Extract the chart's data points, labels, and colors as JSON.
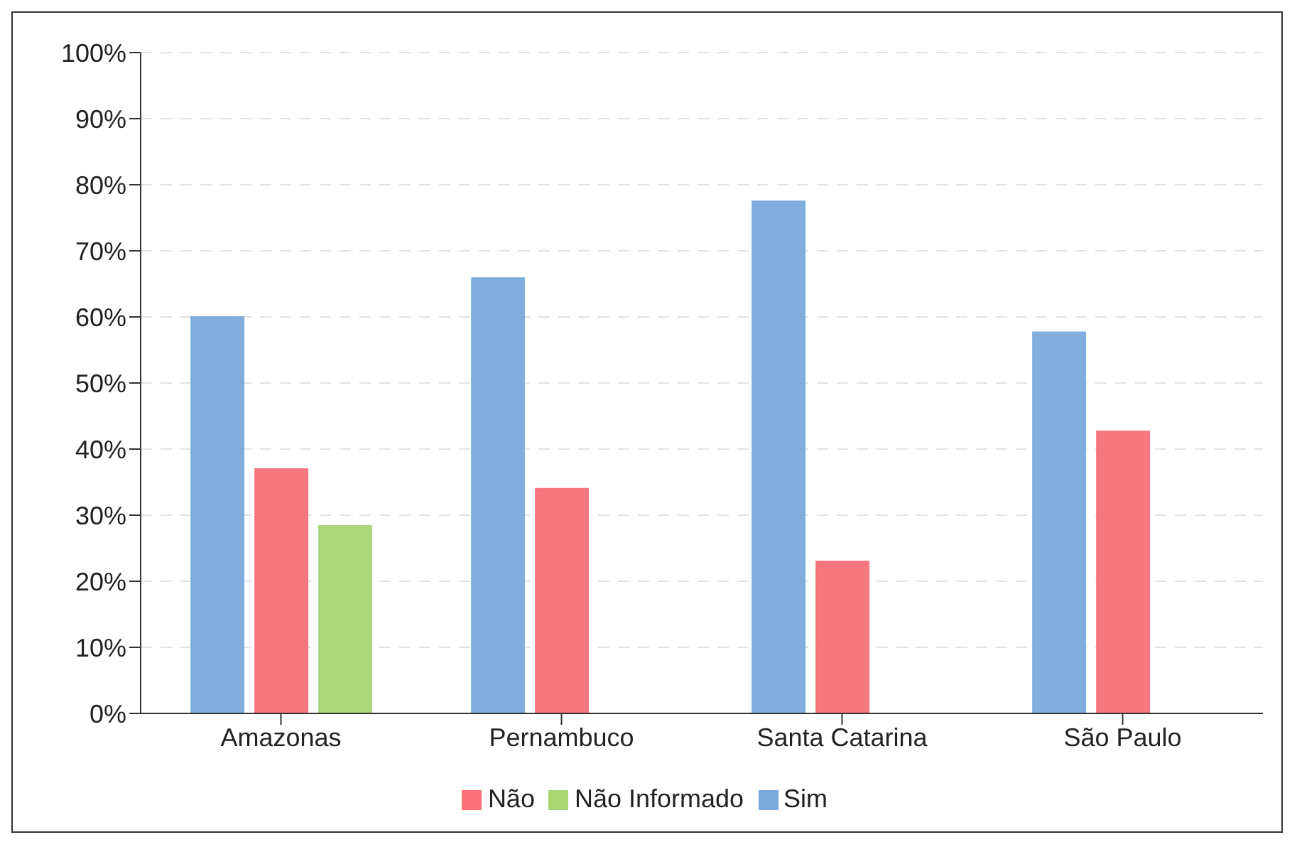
{
  "chart_data": {
    "type": "bar",
    "categories": [
      "Amazonas",
      "Pernambuco",
      "Santa Catarina",
      "São Paulo"
    ],
    "series": [
      {
        "name": "Sim",
        "color": "#7aaadb",
        "values": [
          60,
          65.9,
          77.5,
          57.7
        ]
      },
      {
        "name": "Não",
        "color": "#f7707a",
        "values": [
          37,
          34,
          23,
          42.7
        ]
      },
      {
        "name": "Não Informado",
        "color": "#a9d574",
        "values": [
          28.4,
          null,
          null,
          null
        ]
      }
    ],
    "ylim": [
      0,
      100
    ],
    "yticks": [
      {
        "value": 0,
        "label": "0%"
      },
      {
        "value": 10,
        "label": "10%"
      },
      {
        "value": 20,
        "label": "20%"
      },
      {
        "value": 30,
        "label": "30%"
      },
      {
        "value": 40,
        "label": "40%"
      },
      {
        "value": 50,
        "label": "50%"
      },
      {
        "value": 60,
        "label": "60%"
      },
      {
        "value": 70,
        "label": "70%"
      },
      {
        "value": 80,
        "label": "80%"
      },
      {
        "value": 90,
        "label": "90%"
      },
      {
        "value": 100,
        "label": "100%"
      }
    ],
    "grid": "y",
    "legend": "bottom"
  }
}
